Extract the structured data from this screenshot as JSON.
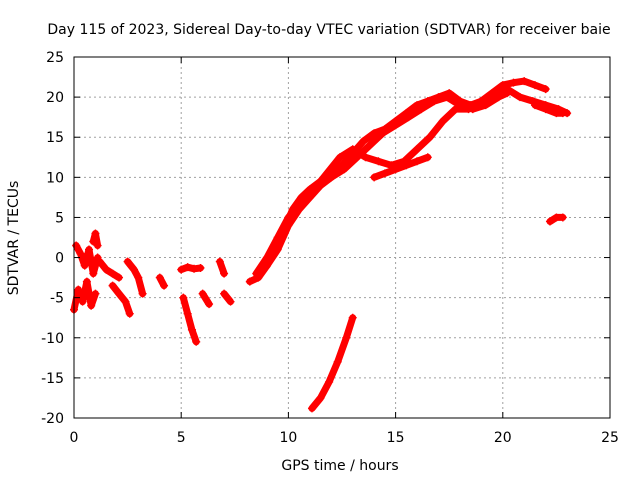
{
  "chart_data": {
    "type": "scatter",
    "title": "Day 115 of 2023, Sidereal Day-to-day VTEC variation (SDTVAR) for receiver baie",
    "xlabel": "GPS time / hours",
    "ylabel": "SDTVAR / TECUs",
    "xlim": [
      0,
      25
    ],
    "ylim": [
      -20,
      25
    ],
    "xticks": [
      "0",
      "5",
      "10",
      "15",
      "20",
      "25"
    ],
    "yticks": [
      "-20",
      "-15",
      "-10",
      "-5",
      "0",
      "5",
      "10",
      "15",
      "20",
      "25"
    ],
    "grid": true,
    "legend": "none",
    "series": [
      {
        "name": "SDTVAR",
        "color": "#ff0000",
        "marker": "plus",
        "segments": [
          {
            "x": [
              0.0,
              0.2,
              0.4,
              0.6,
              0.8,
              1.0
            ],
            "y": [
              -6.5,
              -4.0,
              -5.5,
              -3.0,
              -6.0,
              -4.5
            ]
          },
          {
            "x": [
              0.1,
              0.3,
              0.5,
              0.7,
              0.9,
              1.1
            ],
            "y": [
              1.5,
              0.5,
              -1.0,
              1.0,
              -2.0,
              0.0
            ]
          },
          {
            "x": [
              0.9,
              1.0,
              1.1
            ],
            "y": [
              2.0,
              3.0,
              1.5
            ]
          },
          {
            "x": [
              1.2,
              1.5,
              1.8,
              2.1
            ],
            "y": [
              -0.5,
              -1.5,
              -2.0,
              -2.5
            ]
          },
          {
            "x": [
              1.8,
              2.1,
              2.4,
              2.6
            ],
            "y": [
              -3.5,
              -4.5,
              -5.5,
              -7.0
            ]
          },
          {
            "x": [
              2.5,
              2.8,
              3.0,
              3.2
            ],
            "y": [
              -0.5,
              -1.5,
              -2.5,
              -4.5
            ]
          },
          {
            "x": [
              4.0,
              4.2
            ],
            "y": [
              -2.5,
              -3.5
            ]
          },
          {
            "x": [
              5.0,
              5.3,
              5.6,
              5.9
            ],
            "y": [
              -1.5,
              -1.2,
              -1.4,
              -1.3
            ]
          },
          {
            "x": [
              5.1,
              5.3,
              5.5,
              5.7
            ],
            "y": [
              -5.0,
              -7.0,
              -9.0,
              -10.5
            ]
          },
          {
            "x": [
              6.0,
              6.3
            ],
            "y": [
              -4.5,
              -5.8
            ]
          },
          {
            "x": [
              6.8,
              7.0
            ],
            "y": [
              -0.5,
              -2.0
            ]
          },
          {
            "x": [
              7.0,
              7.3
            ],
            "y": [
              -4.5,
              -5.5
            ]
          },
          {
            "x": [
              8.2,
              8.6,
              9.0,
              9.4,
              9.8,
              10.2,
              10.6,
              11.0,
              11.5,
              12.0,
              12.6,
              13.2,
              13.8,
              14.4,
              15.0,
              15.6,
              16.2,
              16.8,
              17.4,
              18.0,
              18.6,
              19.2,
              19.8,
              20.2
            ],
            "y": [
              -3.0,
              -2.5,
              -1.0,
              1.5,
              3.5,
              6.0,
              7.5,
              8.5,
              9.5,
              10.0,
              11.0,
              12.5,
              14.0,
              15.5,
              16.5,
              17.5,
              18.5,
              19.5,
              20.0,
              19.0,
              18.5,
              19.0,
              20.0,
              20.5
            ]
          },
          {
            "x": [
              8.5,
              9.0,
              9.5,
              10.0,
              10.6,
              11.2,
              11.8,
              12.4,
              13.0,
              13.6,
              14.2,
              14.8,
              15.4,
              16.0,
              16.6,
              17.2,
              17.8,
              18.4,
              19.0,
              19.6,
              20.2,
              20.8,
              21.4,
              22.0,
              22.6,
              23.0
            ],
            "y": [
              -2.0,
              0.0,
              2.5,
              5.0,
              7.0,
              8.5,
              10.5,
              12.5,
              13.5,
              12.5,
              12.0,
              11.5,
              12.0,
              13.5,
              15.0,
              17.0,
              18.5,
              18.5,
              19.5,
              20.5,
              21.0,
              20.0,
              19.5,
              19.0,
              18.5,
              18.0
            ]
          },
          {
            "x": [
              9.0,
              9.5,
              10.0,
              10.5,
              11.0,
              11.5,
              12.0,
              12.5,
              13.0,
              13.5,
              14.0,
              14.5,
              15.0,
              15.5,
              16.0,
              16.5,
              17.0,
              17.5,
              18.0,
              18.5,
              19.0,
              19.5,
              20.0,
              20.5,
              21.0,
              21.5,
              22.0
            ],
            "y": [
              -1.0,
              1.0,
              4.0,
              6.0,
              7.5,
              9.0,
              10.0,
              11.5,
              13.0,
              14.5,
              15.5,
              16.0,
              17.0,
              18.0,
              19.0,
              19.5,
              20.0,
              20.5,
              19.5,
              19.0,
              19.5,
              20.5,
              21.5,
              21.8,
              22.0,
              21.5,
              21.0
            ]
          },
          {
            "x": [
              14.0,
              14.5,
              15.0,
              15.5,
              16.0,
              16.5
            ],
            "y": [
              10.0,
              10.5,
              11.0,
              11.5,
              12.0,
              12.5
            ]
          },
          {
            "x": [
              21.5,
              22.0,
              22.5,
              22.8
            ],
            "y": [
              19.0,
              18.5,
              18.0,
              18.0
            ]
          },
          {
            "x": [
              11.1,
              11.5,
              11.9,
              12.3,
              12.7,
              13.0
            ],
            "y": [
              -18.8,
              -17.5,
              -15.5,
              -13.0,
              -10.0,
              -7.5
            ]
          },
          {
            "x": [
              22.2,
              22.5,
              22.8
            ],
            "y": [
              4.5,
              5.0,
              5.0
            ]
          }
        ]
      }
    ]
  }
}
